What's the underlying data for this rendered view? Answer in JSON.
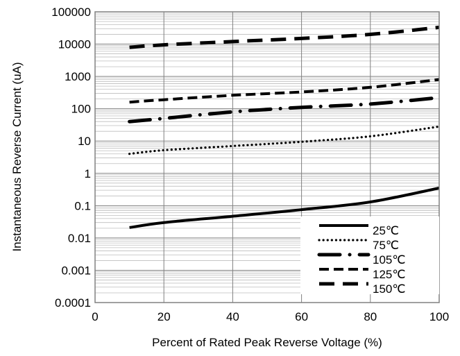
{
  "chart_data": {
    "type": "line",
    "title": "",
    "xlabel": "Percent of Rated Peak Reverse Voltage (%)",
    "ylabel": "Instantaneous Reverse Current (uA)",
    "xlim": [
      0,
      100
    ],
    "ylim": [
      0.0001,
      100000
    ],
    "yscale": "log",
    "grid": true,
    "legend_position": "bottom-right",
    "x_ticks": [
      "0",
      "20",
      "40",
      "60",
      "80",
      "100"
    ],
    "y_ticks": [
      "0.0001",
      "0.001",
      "0.01",
      "0.1",
      "1",
      "10",
      "100",
      "1000",
      "10000",
      "100000"
    ],
    "series": [
      {
        "name": "25℃",
        "x": [
          10,
          20,
          40,
          60,
          80,
          100
        ],
        "y": [
          0.021,
          0.03,
          0.047,
          0.075,
          0.13,
          0.35
        ],
        "style": "solid"
      },
      {
        "name": "75℃",
        "x": [
          10,
          20,
          40,
          60,
          80,
          100
        ],
        "y": [
          4,
          5.2,
          7,
          9.5,
          14,
          28
        ],
        "style": "dotted"
      },
      {
        "name": "105℃",
        "x": [
          10,
          20,
          40,
          60,
          80,
          100
        ],
        "y": [
          40,
          50,
          80,
          110,
          140,
          220
        ],
        "style": "dash-dot"
      },
      {
        "name": "125℃",
        "x": [
          10,
          20,
          40,
          60,
          80,
          100
        ],
        "y": [
          160,
          190,
          260,
          330,
          460,
          800
        ],
        "style": "dashed"
      },
      {
        "name": "150℃",
        "x": [
          10,
          20,
          40,
          60,
          80,
          100
        ],
        "y": [
          8000,
          9500,
          12000,
          15000,
          20000,
          33000
        ],
        "style": "long-dash"
      }
    ]
  }
}
